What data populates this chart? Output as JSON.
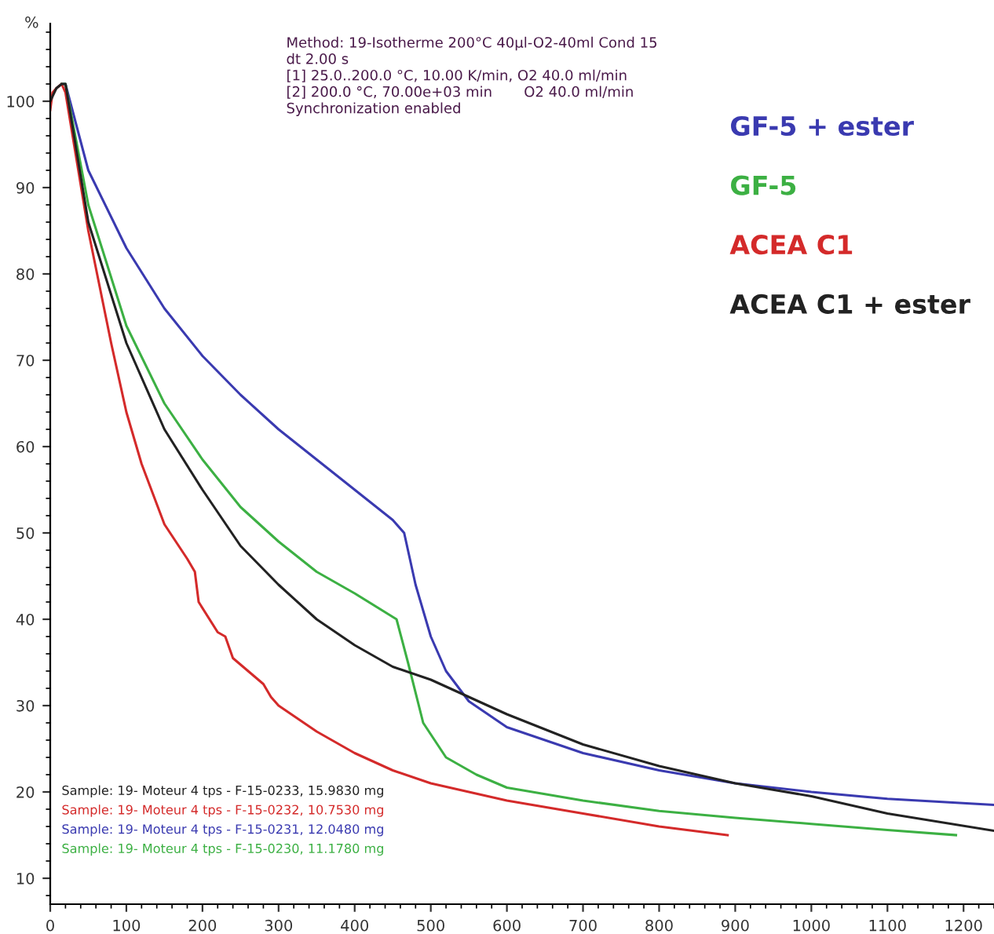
{
  "chart_data": {
    "type": "line",
    "ylabel": "%",
    "xlim": [
      0,
      1240
    ],
    "ylim": [
      7,
      109
    ],
    "xticks": [
      0,
      100,
      200,
      300,
      400,
      500,
      600,
      700,
      800,
      900,
      1000,
      1100,
      1200
    ],
    "yticks": [
      10,
      20,
      30,
      40,
      50,
      60,
      70,
      80,
      90,
      100
    ],
    "grid": false,
    "legend": "right",
    "marker": "none",
    "line_style": "solid",
    "series": [
      {
        "name": "GF-5 + ester",
        "color": "#3a3ab0",
        "x": [
          15,
          20,
          50,
          100,
          150,
          200,
          250,
          300,
          350,
          400,
          450,
          465,
          480,
          500,
          520,
          550,
          600,
          700,
          800,
          900,
          1000,
          1100,
          1240
        ],
        "values": [
          102,
          102,
          92,
          83,
          76,
          70.5,
          66,
          62,
          58.5,
          55,
          51.5,
          50,
          44,
          38,
          34,
          30.5,
          27.5,
          24.5,
          22.5,
          21,
          20,
          19.2,
          18.5
        ]
      },
      {
        "name": "GF-5",
        "color": "#3cb043",
        "x": [
          15,
          20,
          50,
          100,
          150,
          200,
          250,
          300,
          350,
          400,
          455,
          470,
          490,
          520,
          560,
          600,
          700,
          800,
          900,
          1000,
          1100,
          1190
        ],
        "values": [
          102,
          102,
          88,
          74,
          65,
          58.5,
          53,
          49,
          45.5,
          43,
          40,
          35,
          28,
          24,
          22,
          20.5,
          19,
          17.8,
          17,
          16.3,
          15.6,
          15
        ]
      },
      {
        "name": "ACEA C1",
        "color": "#d42a2a",
        "x": [
          0,
          3,
          8,
          15,
          20,
          50,
          80,
          100,
          120,
          150,
          180,
          190,
          195,
          220,
          230,
          240,
          280,
          290,
          300,
          350,
          400,
          450,
          500,
          600,
          700,
          800,
          890
        ],
        "values": [
          99,
          101,
          101.5,
          102,
          101,
          85,
          72,
          64,
          58,
          51,
          47,
          45.5,
          42,
          38.5,
          38,
          35.5,
          32.5,
          31,
          30,
          27,
          24.5,
          22.5,
          21,
          19,
          17.5,
          16,
          15
        ]
      },
      {
        "name": "ACEA C1 + ester",
        "color": "#222222",
        "x": [
          0,
          8,
          15,
          20,
          50,
          100,
          150,
          200,
          250,
          300,
          350,
          400,
          450,
          500,
          550,
          600,
          700,
          800,
          900,
          1000,
          1100,
          1240
        ],
        "values": [
          100,
          101.5,
          102,
          102,
          86,
          72,
          62,
          55,
          48.5,
          44,
          40,
          37,
          34.5,
          33,
          31,
          29,
          25.5,
          23,
          21,
          19.5,
          17.5,
          15.5
        ]
      }
    ],
    "annotations": [
      "Method: 19-Isotherme 200°C 40µl-O2-40ml Cond 15\ndt 2.00 s\n[1] 25.0..200.0 °C, 10.00 K/min, O2 40.0 ml/min\n[2] 200.0 °C, 70.00e+03 min       O2 40.0 ml/min\nSynchronization enabled",
      "Sample: 19- Moteur 4 tps - F-15-0233, 15.9830 mg",
      "Sample: 19- Moteur 4 tps - F-15-0232, 10.7530 mg",
      "Sample: 19- Moteur 4 tps - F-15-0231, 12.0480 mg",
      "Sample: 19- Moteur 4 tps - F-15-0230, 11.1780 mg"
    ]
  }
}
